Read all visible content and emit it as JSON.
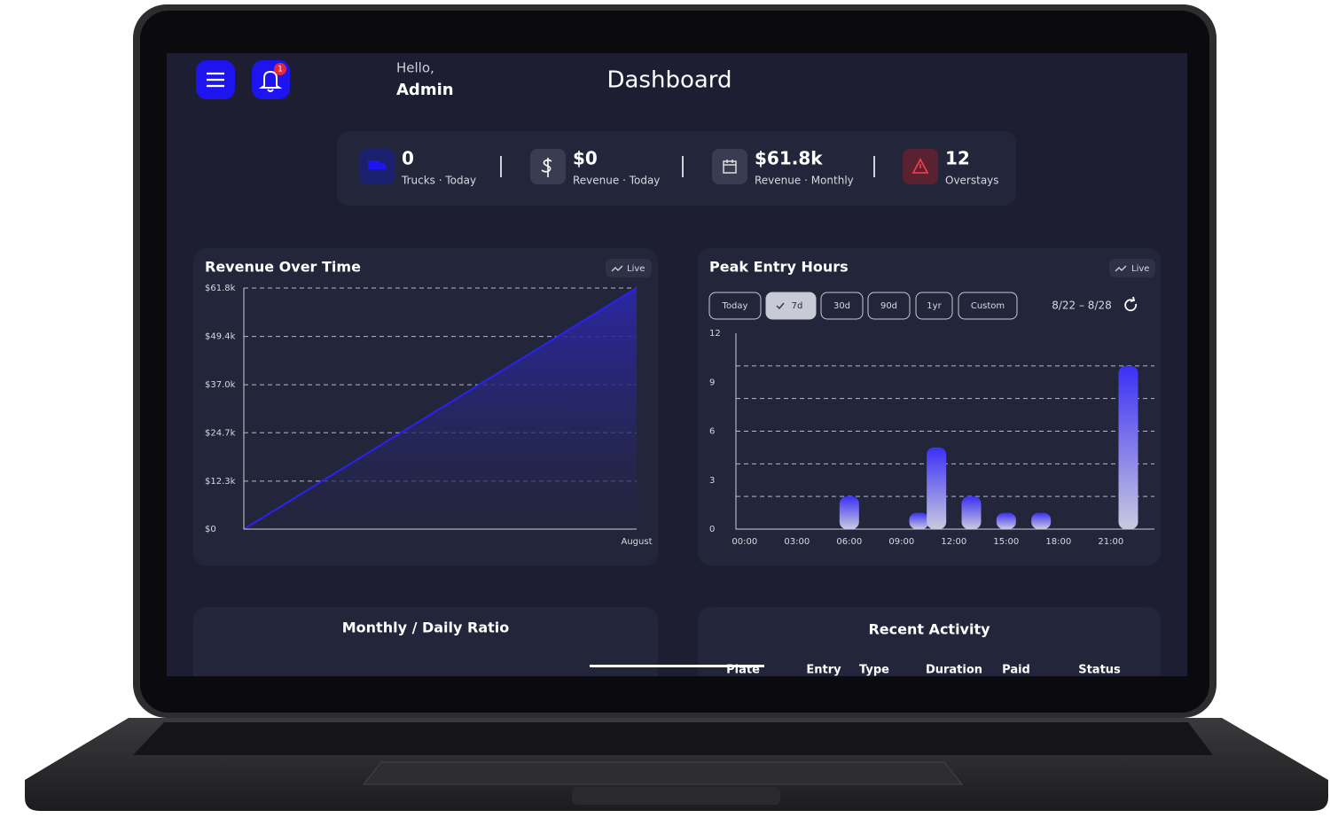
{
  "header": {
    "greeting": "Hello,",
    "user": "Admin",
    "title": "Dashboard",
    "notification_count": 1
  },
  "stats": [
    {
      "value": "0",
      "label": "Trucks · Today"
    },
    {
      "value": "$0",
      "label": "Revenue · Today"
    },
    {
      "value": "$61.8k",
      "label": "Revenue · Monthly"
    },
    {
      "value": "12",
      "label": "Overstays"
    }
  ],
  "revenue_chart": {
    "type": "area",
    "title": "Revenue Over Time",
    "badge": "Live",
    "categories": [
      null,
      "August"
    ],
    "values": [
      0,
      61800
    ],
    "ylim": [
      0,
      61800
    ],
    "yticks": [
      {
        "value": 0,
        "label": "$0"
      },
      {
        "value": 12300,
        "label": "$12.3k"
      },
      {
        "value": 24700,
        "label": "$24.7k"
      },
      {
        "value": 37000,
        "label": "$37.0k"
      },
      {
        "value": 49400,
        "label": "$49.4k"
      },
      {
        "value": 61800,
        "label": "$61.8k"
      }
    ],
    "color": "#2a22f0",
    "grid": true
  },
  "peak_chart": {
    "type": "bar",
    "title": "Peak Entry Hours",
    "badge": "Live",
    "filters": [
      "Today",
      "7d",
      "30d",
      "90d",
      "1yr",
      "Custom"
    ],
    "selected_filter": 1,
    "date_range": "8/22 – 8/28",
    "x": [
      6,
      10,
      11,
      13,
      15,
      17,
      22
    ],
    "values": [
      2,
      1,
      5,
      2,
      1,
      1,
      10
    ],
    "xlim": [
      -0.5,
      23.5
    ],
    "xticks": [
      {
        "value": 0,
        "label": "00:00"
      },
      {
        "value": 3,
        "label": "03:00"
      },
      {
        "value": 6,
        "label": "06:00"
      },
      {
        "value": 9,
        "label": "09:00"
      },
      {
        "value": 12,
        "label": "12:00"
      },
      {
        "value": 15,
        "label": "15:00"
      },
      {
        "value": 18,
        "label": "18:00"
      },
      {
        "value": 21,
        "label": "21:00"
      }
    ],
    "ylim": [
      0,
      12
    ],
    "yticks": [
      0,
      3,
      6,
      9,
      12
    ],
    "grid_lines": [
      2,
      4,
      6,
      8,
      10
    ],
    "color": "#3b2ff5"
  },
  "ratio_card": {
    "title": "Monthly / Daily Ratio"
  },
  "activity_card": {
    "title": "Recent Activity",
    "columns": [
      "Plate",
      "Entry",
      "Type",
      "Duration",
      "Paid",
      "Status"
    ]
  }
}
